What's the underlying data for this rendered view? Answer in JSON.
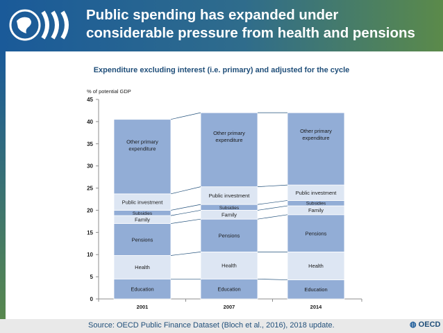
{
  "header": {
    "title_line1": "Public spending has expanded under",
    "title_line2": "considerable pressure from health and pensions"
  },
  "footer": {
    "source": "Source: OECD Public Finance Dataset (Bloch et al., 2016), 2018 update.",
    "logo_text": "OECD"
  },
  "chart_data": {
    "type": "bar",
    "stacked": true,
    "title": "Expenditure excluding interest (i.e. primary) and adjusted for the cycle",
    "ylabel": "% of potential GDP",
    "xlabel": "",
    "ylim": [
      0,
      45
    ],
    "yticks": [
      0,
      5,
      10,
      15,
      20,
      25,
      30,
      35,
      40,
      45
    ],
    "categories": [
      "2001",
      "2007",
      "2014"
    ],
    "series": [
      {
        "name": "Education",
        "label": "Education",
        "values": [
          4.5,
          4.5,
          4.3
        ],
        "color": "#92add6"
      },
      {
        "name": "Health",
        "label": "Health",
        "values": [
          5.3,
          6.1,
          6.3
        ],
        "color": "#dde6f3"
      },
      {
        "name": "Pensions",
        "label": "Pensions",
        "values": [
          7.2,
          7.4,
          8.4
        ],
        "color": "#92add6"
      },
      {
        "name": "Family",
        "label": "Family",
        "values": [
          1.8,
          2.0,
          2.0
        ],
        "color": "#dde6f3"
      },
      {
        "name": "Subsidies",
        "label": "Subsidies",
        "values": [
          1.2,
          1.3,
          1.2
        ],
        "color": "#92add6"
      },
      {
        "name": "Public investment",
        "label": "Public investment",
        "values": [
          3.7,
          4.0,
          3.5
        ],
        "color": "#dde6f3"
      },
      {
        "name": "Other primary expenditure",
        "label": "Other primary\nexpenditure",
        "values": [
          16.8,
          16.7,
          16.3
        ],
        "color": "#92add6"
      }
    ],
    "connectors": true,
    "grid": false,
    "legend": "none (labels inside bars)"
  }
}
